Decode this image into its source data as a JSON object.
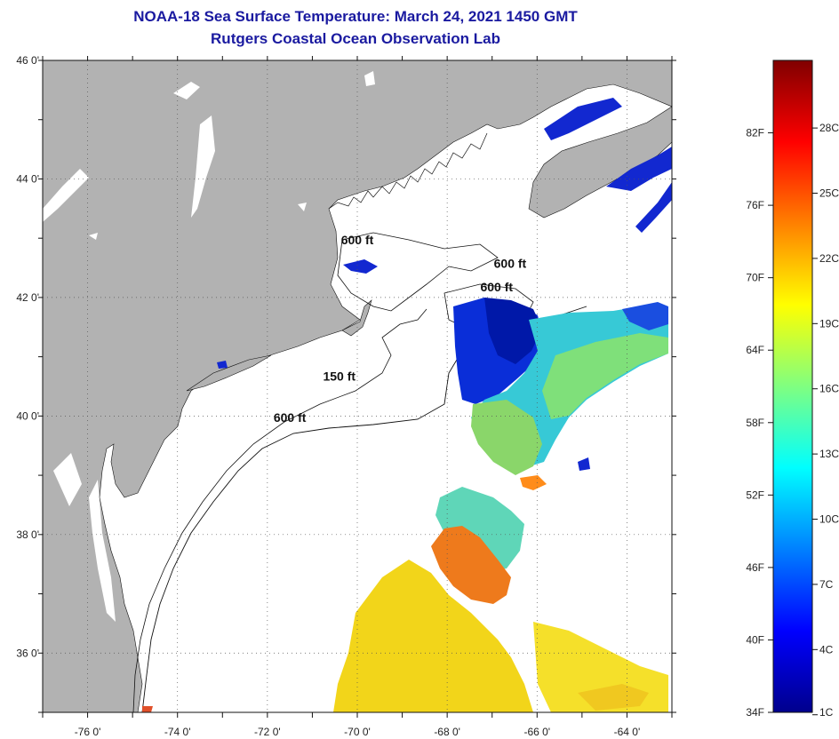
{
  "title": "NOAA-18 Sea Surface Temperature:  March 24, 2021 1450 GMT",
  "subtitle": "Rutgers Coastal Ocean Observation Lab",
  "map": {
    "lon_range": [
      -77,
      -63
    ],
    "lat_range": [
      35,
      46
    ],
    "lat_ticks": [
      {
        "value": 46,
        "label": "46 0'"
      },
      {
        "value": 44,
        "label": "44 0'"
      },
      {
        "value": 42,
        "label": "42 0'"
      },
      {
        "value": 40,
        "label": "40 0'"
      },
      {
        "value": 38,
        "label": "38 0'"
      },
      {
        "value": 36,
        "label": "36 0'"
      }
    ],
    "lon_ticks": [
      {
        "value": -76,
        "label": "-76 0'"
      },
      {
        "value": -74,
        "label": "-74 0'"
      },
      {
        "value": -72,
        "label": "-72 0'"
      },
      {
        "value": -70,
        "label": "-70 0'"
      },
      {
        "value": -68,
        "label": "-68 0'"
      },
      {
        "value": -66,
        "label": "-66 0'"
      },
      {
        "value": -64,
        "label": "-64 0'"
      }
    ],
    "contour_labels": [
      {
        "text": "600 ft",
        "lon": -70.0,
        "lat": 42.9
      },
      {
        "text": "600 ft",
        "lon": -66.6,
        "lat": 42.5
      },
      {
        "text": "600 ft",
        "lon": -66.9,
        "lat": 42.1
      },
      {
        "text": "150 ft",
        "lon": -70.4,
        "lat": 40.6
      },
      {
        "text": "600 ft",
        "lon": -71.5,
        "lat": 39.9
      }
    ],
    "land_color": "#b2b2b2"
  },
  "colorbar": {
    "fahrenheit_labels": [
      "82F",
      "76F",
      "70F",
      "64F",
      "58F",
      "52F",
      "46F",
      "40F",
      "34F"
    ],
    "celsius_labels": [
      "28C",
      "25C",
      "22C",
      "19C",
      "16C",
      "13C",
      "10C",
      "7C",
      "4C",
      "1C"
    ],
    "range_f": [
      34,
      88
    ],
    "colors": [
      "#00008c",
      "#0000ff",
      "#0080ff",
      "#00ffff",
      "#80ff80",
      "#ffff00",
      "#ff8000",
      "#ff0000",
      "#800000"
    ]
  }
}
